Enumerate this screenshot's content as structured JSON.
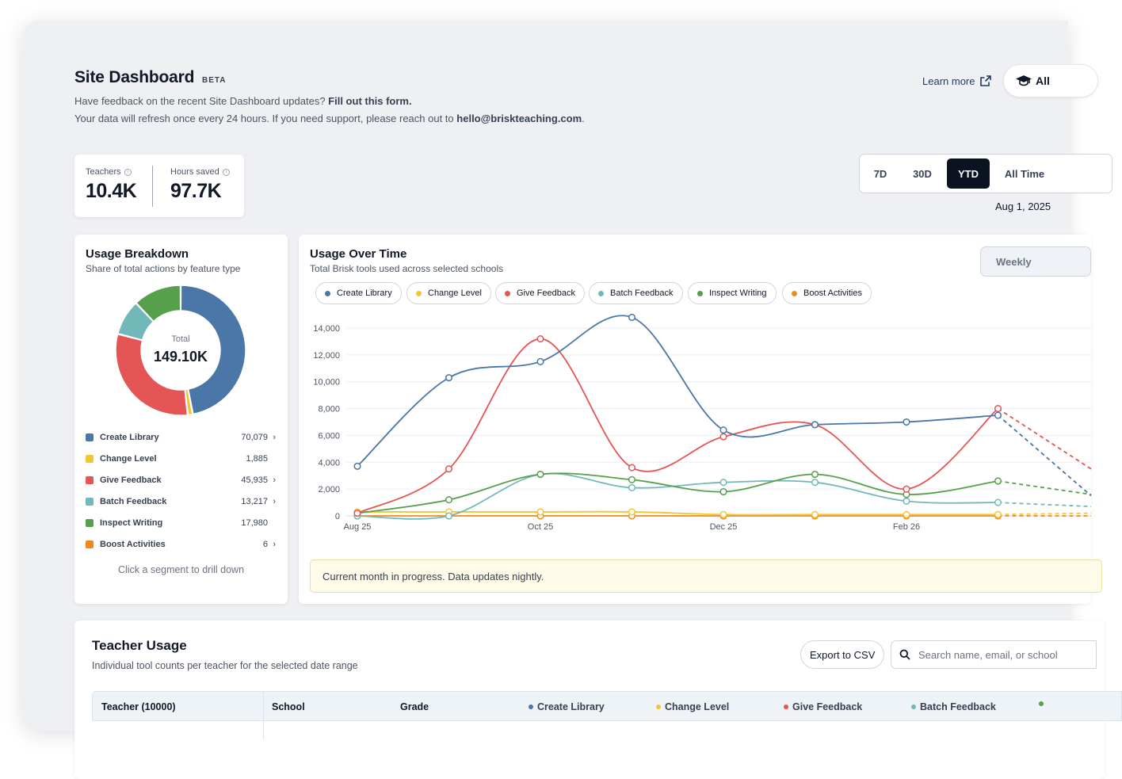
{
  "header": {
    "title": "Site Dashboard",
    "badge": "BETA",
    "feedback_text": "Have feedback on the recent Site Dashboard updates?",
    "feedback_link": "Fill out this form.",
    "refresh_text": "Your data will refresh once every 24 hours. If you need support, please reach out to",
    "support_email": "hello@briskteaching.com",
    "learn_more": "Learn more",
    "all_button": "All"
  },
  "stats": {
    "teachers_label": "Teachers",
    "teachers_value": "10.4K",
    "hours_label": "Hours saved",
    "hours_value": "97.7K"
  },
  "range": {
    "options": [
      "7D",
      "30D",
      "YTD",
      "All Time"
    ],
    "selected": "YTD",
    "date": "Aug 1, 2025"
  },
  "breakdown": {
    "title": "Usage Breakdown",
    "subtitle": "Share of total actions by feature type",
    "total_label": "Total",
    "total_value": "149.10K",
    "hint": "Click a segment to drill down",
    "items": [
      {
        "label": "Create Library",
        "value": "70,079",
        "chevron": "›"
      },
      {
        "label": "Change Level",
        "value": "1,885",
        "chevron": ""
      },
      {
        "label": "Give Feedback",
        "value": "45,935",
        "chevron": "›"
      },
      {
        "label": "Batch Feedback",
        "value": "13,217",
        "chevron": "›"
      },
      {
        "label": "Inspect Writing",
        "value": "17,980",
        "chevron": ""
      },
      {
        "label": "Boost Activities",
        "value": "6",
        "chevron": "›"
      }
    ]
  },
  "usage": {
    "title": "Usage Over Time",
    "subtitle": "Total Brisk tools used across selected schools",
    "granularity": "Weekly",
    "notice": "Current month in progress. Data updates nightly."
  },
  "colors": {
    "create_library": "#4a76a8",
    "change_level": "#f2c534",
    "give_feedback": "#e55555",
    "batch_feedback": "#72b8b8",
    "inspect_writing": "#56a04c",
    "boost_activities": "#f18a1e"
  },
  "chart_data": {
    "type": "line",
    "x": [
      "Aug 25",
      "Sep 25",
      "Oct 25",
      "Nov 25",
      "Dec 25",
      "Jan 26",
      "Feb 26",
      "Mar 26"
    ],
    "x_tick_labels": [
      "Aug 25",
      "Oct 25",
      "Dec 25",
      "Feb 26"
    ],
    "ylim": [
      0,
      15000
    ],
    "y_ticks": [
      0,
      2000,
      4000,
      6000,
      8000,
      10000,
      12000,
      14000
    ],
    "y_tick_labels": [
      "0",
      "2,000",
      "4,000",
      "6,000",
      "8,000",
      "10,000",
      "12,000",
      "14,000"
    ],
    "grid": true,
    "last_point_partial": true,
    "series": [
      {
        "name": "Create Library",
        "values": [
          3700,
          10300,
          11500,
          14800,
          6400,
          6800,
          7000,
          7500
        ],
        "color": "#4a76a8"
      },
      {
        "name": "Change Level",
        "values": [
          300,
          300,
          300,
          300,
          100,
          100,
          100,
          100
        ],
        "color": "#f2c534"
      },
      {
        "name": "Give Feedback",
        "values": [
          200,
          3500,
          13200,
          3600,
          5900,
          6800,
          2000,
          8000
        ],
        "color": "#e55555"
      },
      {
        "name": "Batch Feedback",
        "values": [
          0,
          0,
          3100,
          2100,
          2500,
          2500,
          1100,
          1000
        ],
        "color": "#72b8b8"
      },
      {
        "name": "Inspect Writing",
        "values": [
          200,
          1200,
          3100,
          2700,
          1800,
          3100,
          1600,
          2600
        ],
        "color": "#56a04c"
      },
      {
        "name": "Boost Activities",
        "values": [
          0,
          0,
          0,
          0,
          0,
          0,
          0,
          0
        ],
        "color": "#f18a1e"
      }
    ]
  },
  "donut_data": {
    "type": "pie",
    "categories": [
      "Create Library",
      "Change Level",
      "Give Feedback",
      "Batch Feedback",
      "Inspect Writing",
      "Boost Activities"
    ],
    "values": [
      70079,
      1885,
      45935,
      13217,
      17980,
      6
    ]
  },
  "teacher_usage": {
    "title": "Teacher Usage",
    "subtitle": "Individual tool counts per teacher for the selected date range",
    "export_label": "Export to CSV",
    "search_placeholder": "Search name, email, or school",
    "columns": [
      "Teacher (10000)",
      "School",
      "Grade",
      "Create Library",
      "Change Level",
      "Give Feedback",
      "Batch Feedback"
    ]
  }
}
